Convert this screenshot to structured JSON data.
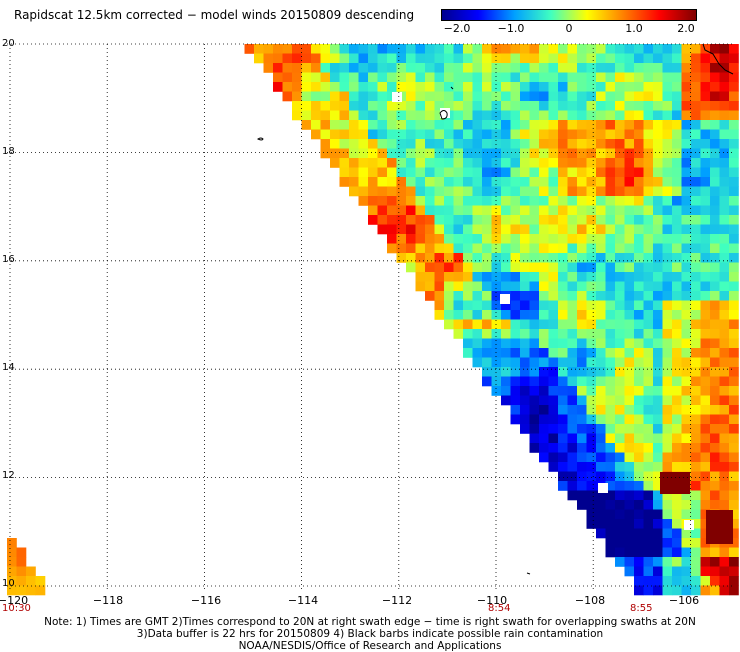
{
  "title": "Rapidscat 12.5km corrected − model winds 20150809 descending",
  "colorbar": {
    "ticks": [
      "−2.0",
      "−1.0",
      "0",
      "1.0",
      "2.0"
    ],
    "tick_values": [
      -2.0,
      -1.0,
      0,
      1.0,
      2.0
    ],
    "range": [
      -2.0,
      2.0
    ],
    "colors": [
      "#00008f",
      "#0000ff",
      "#00a0ff",
      "#40ffc0",
      "#ffff00",
      "#ff8000",
      "#ff0000",
      "#800000"
    ]
  },
  "axes": {
    "y_ticks": [
      "20",
      "18",
      "16",
      "14",
      "12",
      "10"
    ],
    "x_ticks": [
      "−120",
      "−118",
      "−116",
      "−114",
      "−112",
      "−110",
      "−108",
      "−106"
    ],
    "lat_range": [
      10,
      20
    ],
    "lon_range": [
      -120,
      -104.8
    ]
  },
  "swath_times": [
    "10:30",
    "8:54",
    "8:55"
  ],
  "notes": [
    "Note: 1) Times are GMT 2)Times correspond to 20N at right swath edge − time is right swath for overlapping swaths at 20N",
    "3)Data buffer is 22 hrs for 20150809 4) Black barbs indicate possible rain contamination",
    "NOAA/NESDIS/Office of Research and Applications"
  ]
}
